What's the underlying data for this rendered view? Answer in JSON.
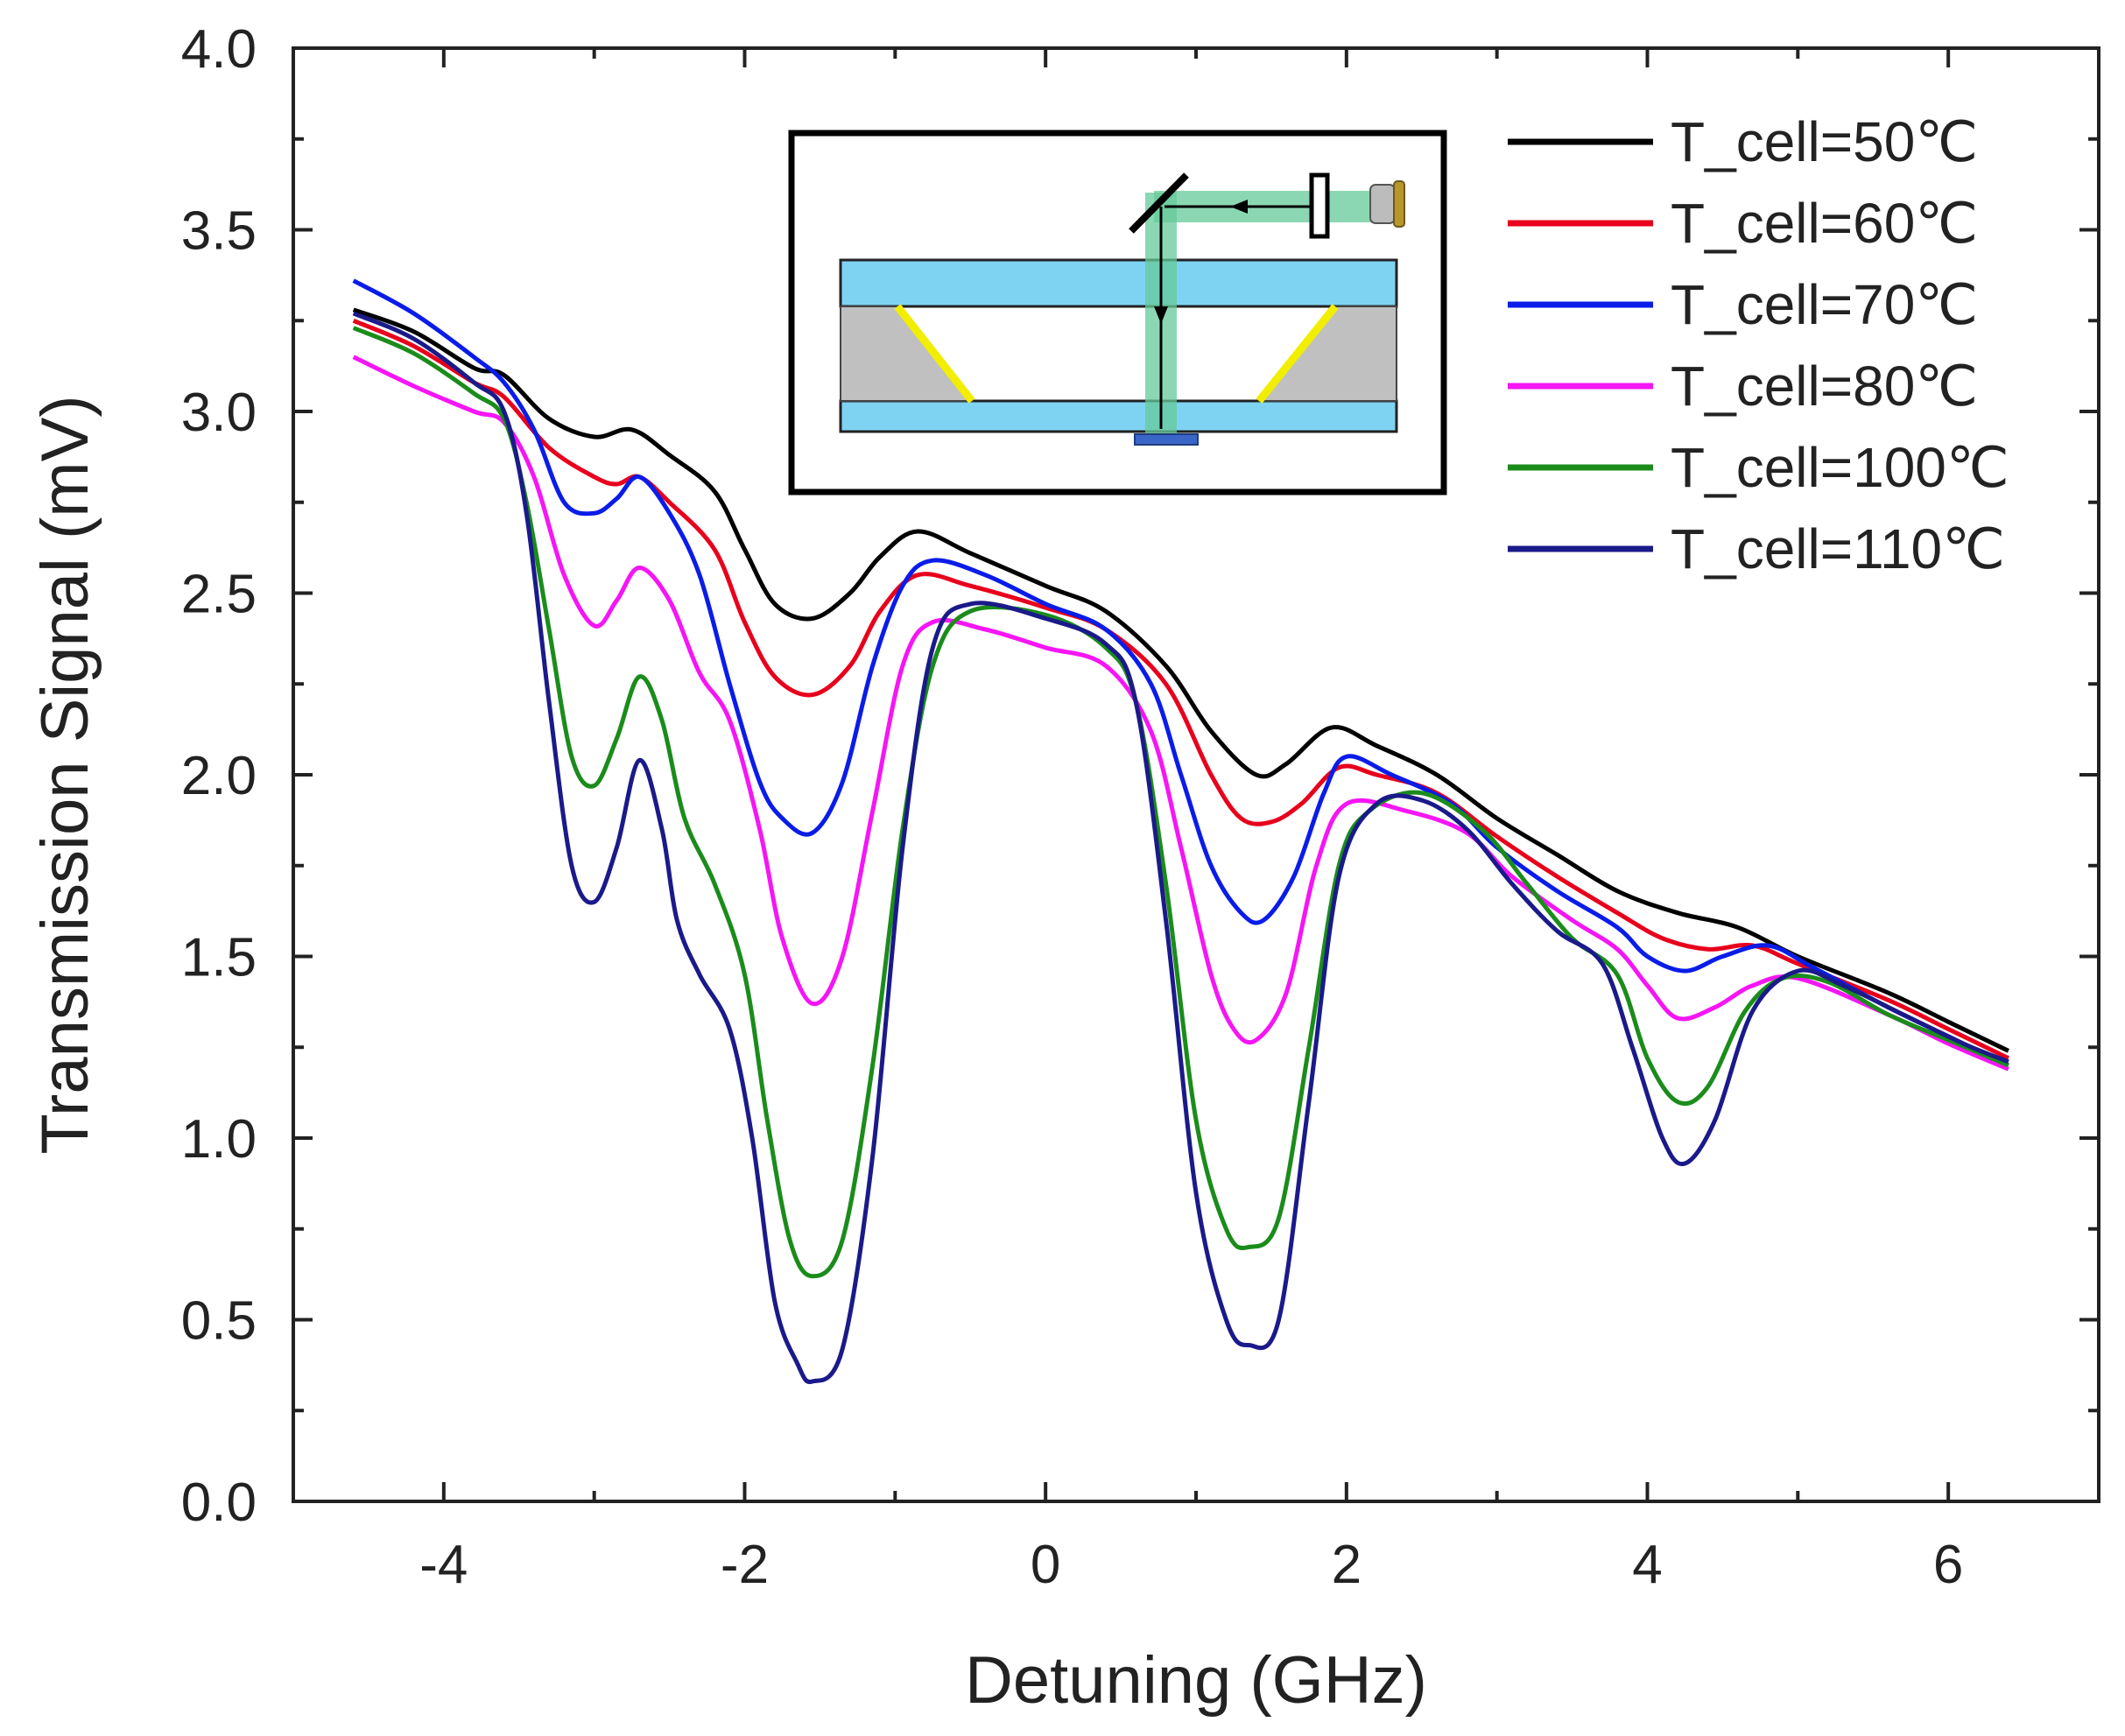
{
  "chart_data": {
    "type": "line",
    "title": "",
    "xlabel": "Detuning (GHz)",
    "ylabel": "Transmission Signal (mV)",
    "xlim": [
      -5,
      7
    ],
    "ylim": [
      0.0,
      4.0
    ],
    "x_major_ticks": [
      -4,
      -2,
      0,
      2,
      4,
      6
    ],
    "x_tick_labels": [
      "-4",
      "-2",
      "0",
      "2",
      "4",
      "6"
    ],
    "y_major_ticks": [
      0.0,
      0.5,
      1.0,
      1.5,
      2.0,
      2.5,
      3.0,
      3.5,
      4.0
    ],
    "y_tick_labels": [
      "0.0",
      "0.5",
      "1.0",
      "1.5",
      "2.0",
      "2.5",
      "3.0",
      "3.5",
      "4.0"
    ],
    "legend_position": "top-right",
    "inset": "schematic of the vapor cell setup: laser, polarizer, mirror, glass plates and cell",
    "series": [
      {
        "name": "T_cell=50℃",
        "color": "#000000",
        "points": [
          [
            -4.6,
            3.28
          ],
          [
            -4.2,
            3.22
          ],
          [
            -3.8,
            3.12
          ],
          [
            -3.6,
            3.1
          ],
          [
            -3.3,
            2.98
          ],
          [
            -3.0,
            2.93
          ],
          [
            -2.75,
            2.95
          ],
          [
            -2.5,
            2.88
          ],
          [
            -2.2,
            2.78
          ],
          [
            -2.0,
            2.62
          ],
          [
            -1.8,
            2.47
          ],
          [
            -1.55,
            2.43
          ],
          [
            -1.3,
            2.5
          ],
          [
            -1.1,
            2.6
          ],
          [
            -0.85,
            2.67
          ],
          [
            -0.5,
            2.61
          ],
          [
            0.0,
            2.52
          ],
          [
            0.4,
            2.45
          ],
          [
            0.8,
            2.3
          ],
          [
            1.1,
            2.12
          ],
          [
            1.4,
            2.0
          ],
          [
            1.6,
            2.03
          ],
          [
            1.9,
            2.13
          ],
          [
            2.2,
            2.08
          ],
          [
            2.6,
            2.0
          ],
          [
            3.0,
            1.88
          ],
          [
            3.4,
            1.78
          ],
          [
            3.8,
            1.68
          ],
          [
            4.2,
            1.62
          ],
          [
            4.6,
            1.58
          ],
          [
            5.0,
            1.5
          ],
          [
            5.6,
            1.4
          ],
          [
            6.0,
            1.32
          ],
          [
            6.4,
            1.24
          ]
        ]
      },
      {
        "name": "T_cell=60℃",
        "color": "#e8001c",
        "points": [
          [
            -4.6,
            3.25
          ],
          [
            -4.2,
            3.18
          ],
          [
            -3.8,
            3.08
          ],
          [
            -3.6,
            3.04
          ],
          [
            -3.3,
            2.9
          ],
          [
            -3.0,
            2.82
          ],
          [
            -2.85,
            2.8
          ],
          [
            -2.7,
            2.82
          ],
          [
            -2.5,
            2.75
          ],
          [
            -2.2,
            2.62
          ],
          [
            -2.0,
            2.42
          ],
          [
            -1.8,
            2.27
          ],
          [
            -1.55,
            2.22
          ],
          [
            -1.3,
            2.3
          ],
          [
            -1.1,
            2.45
          ],
          [
            -0.85,
            2.55
          ],
          [
            -0.5,
            2.52
          ],
          [
            0.0,
            2.46
          ],
          [
            0.4,
            2.4
          ],
          [
            0.8,
            2.25
          ],
          [
            1.1,
            2.0
          ],
          [
            1.3,
            1.88
          ],
          [
            1.5,
            1.87
          ],
          [
            1.7,
            1.92
          ],
          [
            1.95,
            2.02
          ],
          [
            2.2,
            2.0
          ],
          [
            2.6,
            1.95
          ],
          [
            3.0,
            1.83
          ],
          [
            3.4,
            1.72
          ],
          [
            3.8,
            1.62
          ],
          [
            4.1,
            1.55
          ],
          [
            4.4,
            1.52
          ],
          [
            4.7,
            1.53
          ],
          [
            5.0,
            1.48
          ],
          [
            5.6,
            1.38
          ],
          [
            6.0,
            1.3
          ],
          [
            6.4,
            1.22
          ]
        ]
      },
      {
        "name": "T_cell=70℃",
        "color": "#0a1ce8",
        "points": [
          [
            -4.6,
            3.36
          ],
          [
            -4.2,
            3.27
          ],
          [
            -3.8,
            3.15
          ],
          [
            -3.6,
            3.08
          ],
          [
            -3.4,
            2.95
          ],
          [
            -3.2,
            2.75
          ],
          [
            -3.0,
            2.72
          ],
          [
            -2.85,
            2.76
          ],
          [
            -2.7,
            2.82
          ],
          [
            -2.5,
            2.72
          ],
          [
            -2.3,
            2.55
          ],
          [
            -2.1,
            2.25
          ],
          [
            -1.9,
            1.98
          ],
          [
            -1.75,
            1.88
          ],
          [
            -1.55,
            1.84
          ],
          [
            -1.35,
            1.98
          ],
          [
            -1.15,
            2.3
          ],
          [
            -0.95,
            2.52
          ],
          [
            -0.75,
            2.59
          ],
          [
            -0.4,
            2.55
          ],
          [
            0.0,
            2.47
          ],
          [
            0.4,
            2.4
          ],
          [
            0.7,
            2.25
          ],
          [
            0.9,
            2.0
          ],
          [
            1.1,
            1.75
          ],
          [
            1.3,
            1.62
          ],
          [
            1.45,
            1.6
          ],
          [
            1.65,
            1.72
          ],
          [
            1.85,
            1.95
          ],
          [
            2.0,
            2.05
          ],
          [
            2.3,
            2.0
          ],
          [
            2.7,
            1.92
          ],
          [
            3.0,
            1.8
          ],
          [
            3.4,
            1.68
          ],
          [
            3.8,
            1.58
          ],
          [
            4.0,
            1.5
          ],
          [
            4.25,
            1.46
          ],
          [
            4.5,
            1.5
          ],
          [
            4.8,
            1.53
          ],
          [
            5.1,
            1.47
          ],
          [
            5.6,
            1.36
          ],
          [
            6.0,
            1.28
          ],
          [
            6.4,
            1.2
          ]
        ]
      },
      {
        "name": "T_cell=80℃",
        "color": "#f515f5",
        "points": [
          [
            -4.6,
            3.15
          ],
          [
            -4.2,
            3.07
          ],
          [
            -3.8,
            3.0
          ],
          [
            -3.6,
            2.97
          ],
          [
            -3.4,
            2.82
          ],
          [
            -3.2,
            2.55
          ],
          [
            -3.0,
            2.41
          ],
          [
            -2.85,
            2.48
          ],
          [
            -2.7,
            2.57
          ],
          [
            -2.5,
            2.48
          ],
          [
            -2.3,
            2.28
          ],
          [
            -2.1,
            2.15
          ],
          [
            -1.9,
            1.85
          ],
          [
            -1.75,
            1.55
          ],
          [
            -1.55,
            1.37
          ],
          [
            -1.35,
            1.5
          ],
          [
            -1.15,
            1.9
          ],
          [
            -0.95,
            2.3
          ],
          [
            -0.75,
            2.42
          ],
          [
            -0.4,
            2.4
          ],
          [
            0.0,
            2.35
          ],
          [
            0.4,
            2.3
          ],
          [
            0.7,
            2.12
          ],
          [
            0.9,
            1.8
          ],
          [
            1.1,
            1.45
          ],
          [
            1.25,
            1.3
          ],
          [
            1.4,
            1.27
          ],
          [
            1.6,
            1.4
          ],
          [
            1.8,
            1.75
          ],
          [
            2.0,
            1.92
          ],
          [
            2.4,
            1.9
          ],
          [
            2.8,
            1.84
          ],
          [
            3.1,
            1.72
          ],
          [
            3.5,
            1.6
          ],
          [
            3.8,
            1.52
          ],
          [
            4.0,
            1.42
          ],
          [
            4.2,
            1.33
          ],
          [
            4.45,
            1.36
          ],
          [
            4.7,
            1.42
          ],
          [
            5.0,
            1.44
          ],
          [
            5.6,
            1.34
          ],
          [
            6.0,
            1.26
          ],
          [
            6.4,
            1.19
          ]
        ]
      },
      {
        "name": "T_cell=100℃",
        "color": "#1b8c1b",
        "points": [
          [
            -4.6,
            3.23
          ],
          [
            -4.2,
            3.16
          ],
          [
            -3.8,
            3.05
          ],
          [
            -3.6,
            2.98
          ],
          [
            -3.45,
            2.75
          ],
          [
            -3.3,
            2.4
          ],
          [
            -3.15,
            2.05
          ],
          [
            -3.0,
            1.97
          ],
          [
            -2.85,
            2.1
          ],
          [
            -2.7,
            2.27
          ],
          [
            -2.55,
            2.15
          ],
          [
            -2.4,
            1.88
          ],
          [
            -2.2,
            1.7
          ],
          [
            -2.0,
            1.45
          ],
          [
            -1.85,
            1.05
          ],
          [
            -1.7,
            0.72
          ],
          [
            -1.55,
            0.62
          ],
          [
            -1.35,
            0.72
          ],
          [
            -1.15,
            1.2
          ],
          [
            -0.95,
            1.85
          ],
          [
            -0.75,
            2.3
          ],
          [
            -0.5,
            2.45
          ],
          [
            0.0,
            2.44
          ],
          [
            0.4,
            2.35
          ],
          [
            0.6,
            2.2
          ],
          [
            0.8,
            1.7
          ],
          [
            1.0,
            1.05
          ],
          [
            1.2,
            0.75
          ],
          [
            1.35,
            0.7
          ],
          [
            1.55,
            0.78
          ],
          [
            1.75,
            1.25
          ],
          [
            1.95,
            1.75
          ],
          [
            2.15,
            1.9
          ],
          [
            2.5,
            1.95
          ],
          [
            2.9,
            1.85
          ],
          [
            3.2,
            1.7
          ],
          [
            3.5,
            1.55
          ],
          [
            3.8,
            1.45
          ],
          [
            4.0,
            1.22
          ],
          [
            4.2,
            1.1
          ],
          [
            4.4,
            1.14
          ],
          [
            4.65,
            1.35
          ],
          [
            4.9,
            1.44
          ],
          [
            5.2,
            1.43
          ],
          [
            5.6,
            1.34
          ],
          [
            6.0,
            1.27
          ],
          [
            6.4,
            1.2
          ]
        ]
      },
      {
        "name": "T_cell=110℃",
        "color": "#1a1a8a",
        "points": [
          [
            -4.6,
            3.27
          ],
          [
            -4.2,
            3.2
          ],
          [
            -3.8,
            3.08
          ],
          [
            -3.6,
            3.0
          ],
          [
            -3.45,
            2.72
          ],
          [
            -3.3,
            2.2
          ],
          [
            -3.15,
            1.75
          ],
          [
            -3.0,
            1.65
          ],
          [
            -2.85,
            1.8
          ],
          [
            -2.7,
            2.04
          ],
          [
            -2.55,
            1.85
          ],
          [
            -2.45,
            1.6
          ],
          [
            -2.3,
            1.45
          ],
          [
            -2.1,
            1.3
          ],
          [
            -1.95,
            1.0
          ],
          [
            -1.8,
            0.55
          ],
          [
            -1.65,
            0.38
          ],
          [
            -1.55,
            0.33
          ],
          [
            -1.35,
            0.42
          ],
          [
            -1.15,
            0.95
          ],
          [
            -0.95,
            1.8
          ],
          [
            -0.75,
            2.35
          ],
          [
            -0.5,
            2.47
          ],
          [
            0.0,
            2.43
          ],
          [
            0.4,
            2.36
          ],
          [
            0.6,
            2.2
          ],
          [
            0.8,
            1.6
          ],
          [
            1.0,
            0.85
          ],
          [
            1.2,
            0.5
          ],
          [
            1.35,
            0.43
          ],
          [
            1.55,
            0.5
          ],
          [
            1.75,
            1.1
          ],
          [
            1.95,
            1.72
          ],
          [
            2.2,
            1.92
          ],
          [
            2.5,
            1.93
          ],
          [
            2.8,
            1.85
          ],
          [
            3.1,
            1.7
          ],
          [
            3.4,
            1.57
          ],
          [
            3.7,
            1.48
          ],
          [
            3.9,
            1.25
          ],
          [
            4.1,
            1.0
          ],
          [
            4.25,
            0.93
          ],
          [
            4.45,
            1.05
          ],
          [
            4.7,
            1.35
          ],
          [
            5.0,
            1.46
          ],
          [
            5.3,
            1.42
          ],
          [
            5.7,
            1.34
          ],
          [
            6.1,
            1.26
          ],
          [
            6.4,
            1.21
          ]
        ]
      }
    ]
  }
}
